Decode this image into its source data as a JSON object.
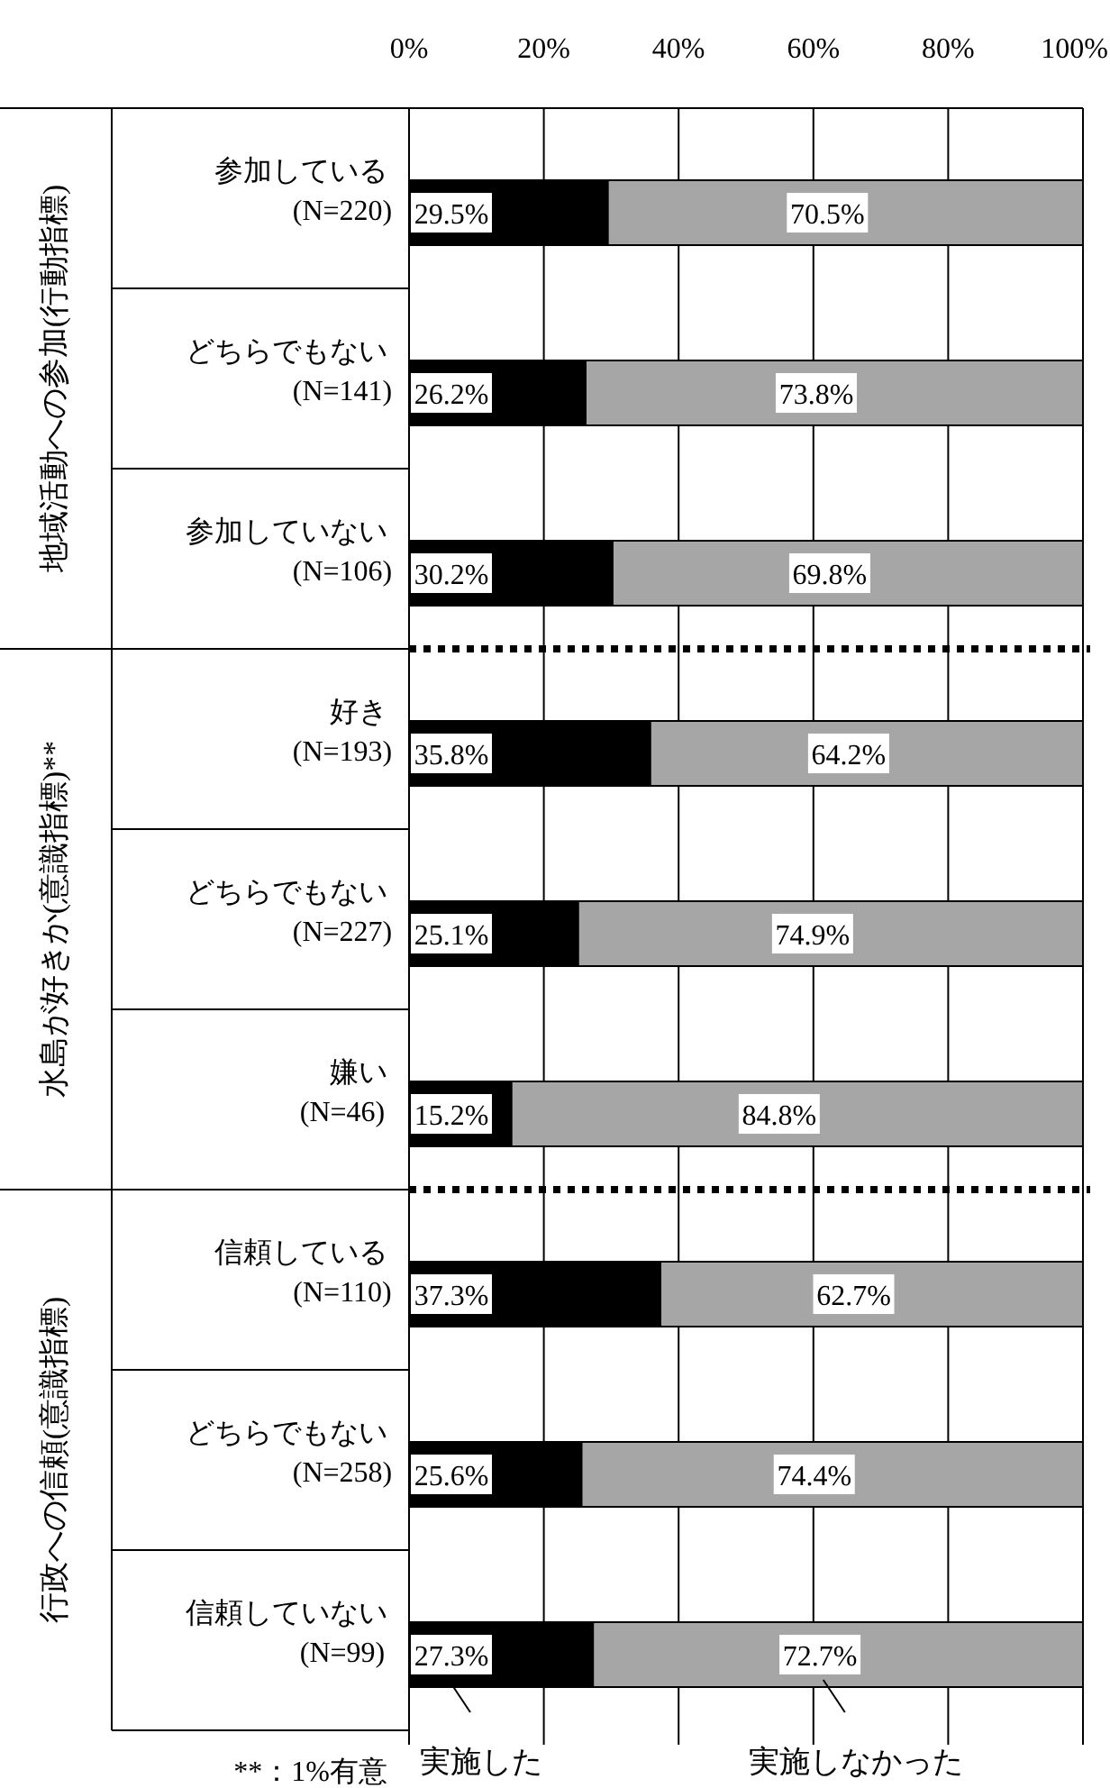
{
  "chart_data": {
    "type": "bar",
    "orientation": "horizontal",
    "stacked": true,
    "categories": [
      "参加している\n(N=220)",
      "どちらでもない\n(N=141)",
      "参加していない\n(N=106)",
      "好き\n(N=193)",
      "どちらでもない\n(N=227)",
      "嫌い\n(N=46)",
      "信頼している\n(N=110)",
      "どちらでもない\n(N=258)",
      "信頼していない\n(N=99)"
    ],
    "series": [
      {
        "name": "実施した",
        "color": "#000000",
        "values": [
          29.5,
          26.2,
          30.2,
          35.8,
          25.1,
          15.2,
          37.3,
          25.6,
          27.3
        ],
        "value_labels": [
          "29.5%",
          "26.2%",
          "30.2%",
          "35.8%",
          "25.1%",
          "15.2%",
          "37.3%",
          "25.6%",
          "27.3%"
        ]
      },
      {
        "name": "実施しなかった",
        "color": "#a6a6a6",
        "values": [
          70.5,
          73.8,
          69.8,
          64.2,
          74.9,
          84.8,
          62.7,
          74.4,
          72.7
        ],
        "value_labels": [
          "70.5%",
          "73.8%",
          "69.8%",
          "64.2%",
          "74.9%",
          "84.8%",
          "62.7%",
          "74.4%",
          "72.7%"
        ]
      }
    ],
    "xlim": [
      0,
      100
    ],
    "xticks": [
      {
        "value": 0,
        "label": "0%"
      },
      {
        "value": 20,
        "label": "20%"
      },
      {
        "value": 40,
        "label": "40%"
      },
      {
        "value": 60,
        "label": "60%"
      },
      {
        "value": 80,
        "label": "80%"
      },
      {
        "value": 100,
        "label": "100%"
      }
    ],
    "grid": "x",
    "legend": "bottom",
    "annotations": [
      "地域活動への参加(行動指標)",
      "水島が好きか(意識指標)**",
      "行政への信頼(意識指標)",
      "**：1%有意"
    ]
  }
}
